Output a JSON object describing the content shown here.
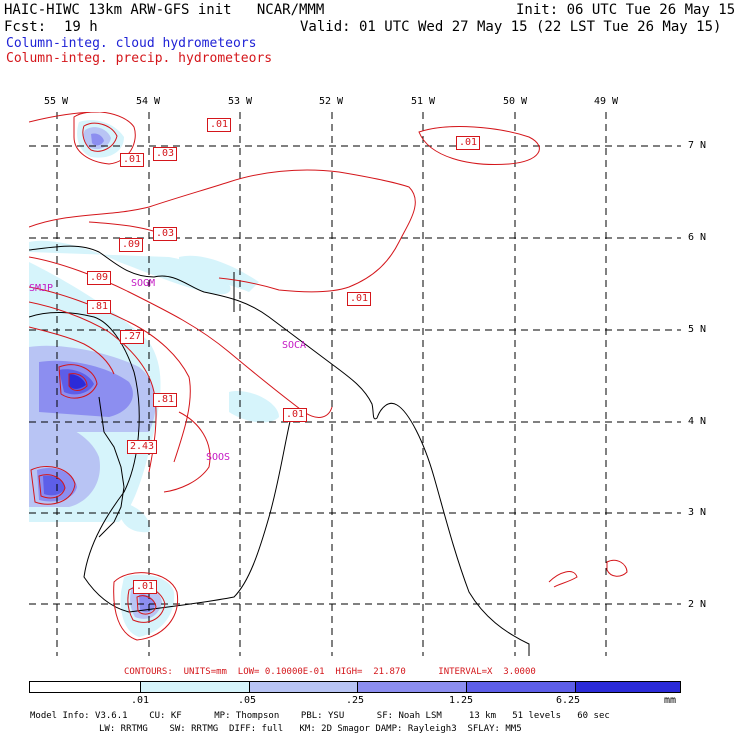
{
  "header": {
    "title": "HAIC-HIWC 13km ARW-GFS init   NCAR/MMM",
    "init": "Init: 06 UTC Tue 26 May 15",
    "fcst_label": "Fcst:",
    "fcst_value": "19 h",
    "valid": "Valid: 01 UTC Wed 27 May 15 (22 LST Tue 26 May 15)",
    "field1": "Column-integ. cloud hydrometeors",
    "field2": "Column-integ. precip. hydrometeors"
  },
  "colors": {
    "cloud": "#1f22d6",
    "precip": "#d4161b",
    "stations": "#c418c4",
    "shade_levels": [
      "#ffffff",
      "#d6f4fb",
      "#b8c4f4",
      "#8c8ef0",
      "#5d5ee8",
      "#2b2bd8"
    ]
  },
  "map": {
    "lon_labels": [
      "55 W",
      "54 W",
      "53 W",
      "52 W",
      "51 W",
      "50 W",
      "49 W"
    ],
    "lat_labels": [
      "7 N",
      "6 N",
      "5 N",
      "4 N",
      "3 N",
      "2 N"
    ],
    "stations": [
      "SMJP",
      "SOGM",
      "SOCA",
      "SOOS"
    ],
    "contour_labels": [
      ".01",
      ".03",
      ".01",
      ".01",
      ".09",
      ".03",
      ".09",
      ".81",
      ".27",
      ".01",
      ".81",
      ".01",
      "2.43",
      ".01"
    ]
  },
  "footer": {
    "contours_line": "CONTOURS:  UNITS=mm  LOW= 0.10000E-01  HIGH=  21.870      INTERVAL=X  3.0000",
    "colorbar_ticks": [
      ".01",
      ".05",
      ".25",
      "1.25",
      "6.25"
    ],
    "colorbar_unit": "mm",
    "model_line1": "Model Info: V3.6.1    CU: KF      MP: Thompson    PBL: YSU      SF: Noah LSM     13 km   51 levels   60 sec",
    "model_line2": "LW: RRTMG    SW: RRTMG  DIFF: full   KM: 2D Smagor DAMP: Rayleigh3  SFLAY: MM5"
  }
}
